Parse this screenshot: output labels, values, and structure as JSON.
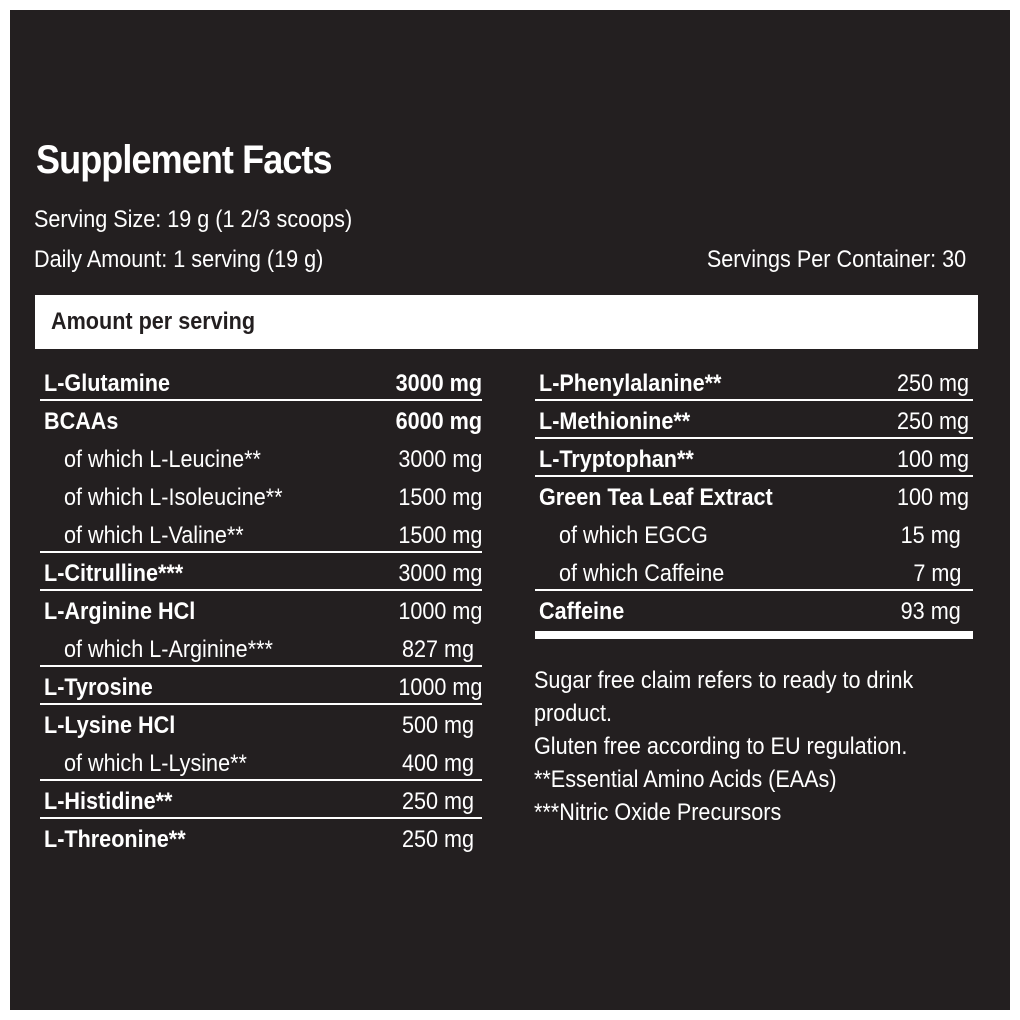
{
  "title": "Supplement Facts",
  "serving_size": "Serving Size: 19 g (1 2/3 scoops)",
  "daily_amount": "Daily Amount: 1 serving (19 g)",
  "servings_per_container": "Servings Per Container: 30",
  "amount_header": "Amount per serving",
  "left_rows": [
    {
      "name": "L-Glutamine",
      "amount": "3000 mg"
    },
    {
      "name": "BCAAs",
      "amount": "6000 mg"
    },
    {
      "name": "of which L-Leucine**",
      "amount": "3000 mg"
    },
    {
      "name": "of which L-Isoleucine**",
      "amount": "1500 mg"
    },
    {
      "name": "of which L-Valine**",
      "amount": "1500 mg"
    },
    {
      "name": "L-Citrulline***",
      "amount": "3000 mg"
    },
    {
      "name": "L-Arginine HCl",
      "amount": "1000 mg"
    },
    {
      "name": "of which L-Arginine***",
      "amount": "827 mg"
    },
    {
      "name": "L-Tyrosine",
      "amount": "1000 mg"
    },
    {
      "name": "L-Lysine HCl",
      "amount": "500 mg"
    },
    {
      "name": "of which L-Lysine**",
      "amount": "400 mg"
    },
    {
      "name": "L-Histidine**",
      "amount": "250 mg"
    },
    {
      "name": "L-Threonine**",
      "amount": "250 mg"
    }
  ],
  "right_rows": [
    {
      "name": "L-Phenylalanine**",
      "amount": "250 mg"
    },
    {
      "name": "L-Methionine**",
      "amount": "250 mg"
    },
    {
      "name": "L-Tryptophan**",
      "amount": "100 mg"
    },
    {
      "name": "Green Tea Leaf Extract",
      "amount": "100 mg"
    },
    {
      "name": "of which EGCG",
      "amount": "15 mg"
    },
    {
      "name": "of which Caffeine",
      "amount": "7 mg"
    },
    {
      "name": "Caffeine",
      "amount": "93 mg"
    }
  ],
  "notes": [
    "Sugar free claim refers to ready to drink",
    "product.",
    "Gluten free according to EU regulation.",
    "**Essential Amino Acids (EAAs)",
    "***Nitric Oxide Precursors"
  ],
  "colors": {
    "background": "#231f20",
    "text": "#ffffff",
    "frame": "#ffffff"
  }
}
